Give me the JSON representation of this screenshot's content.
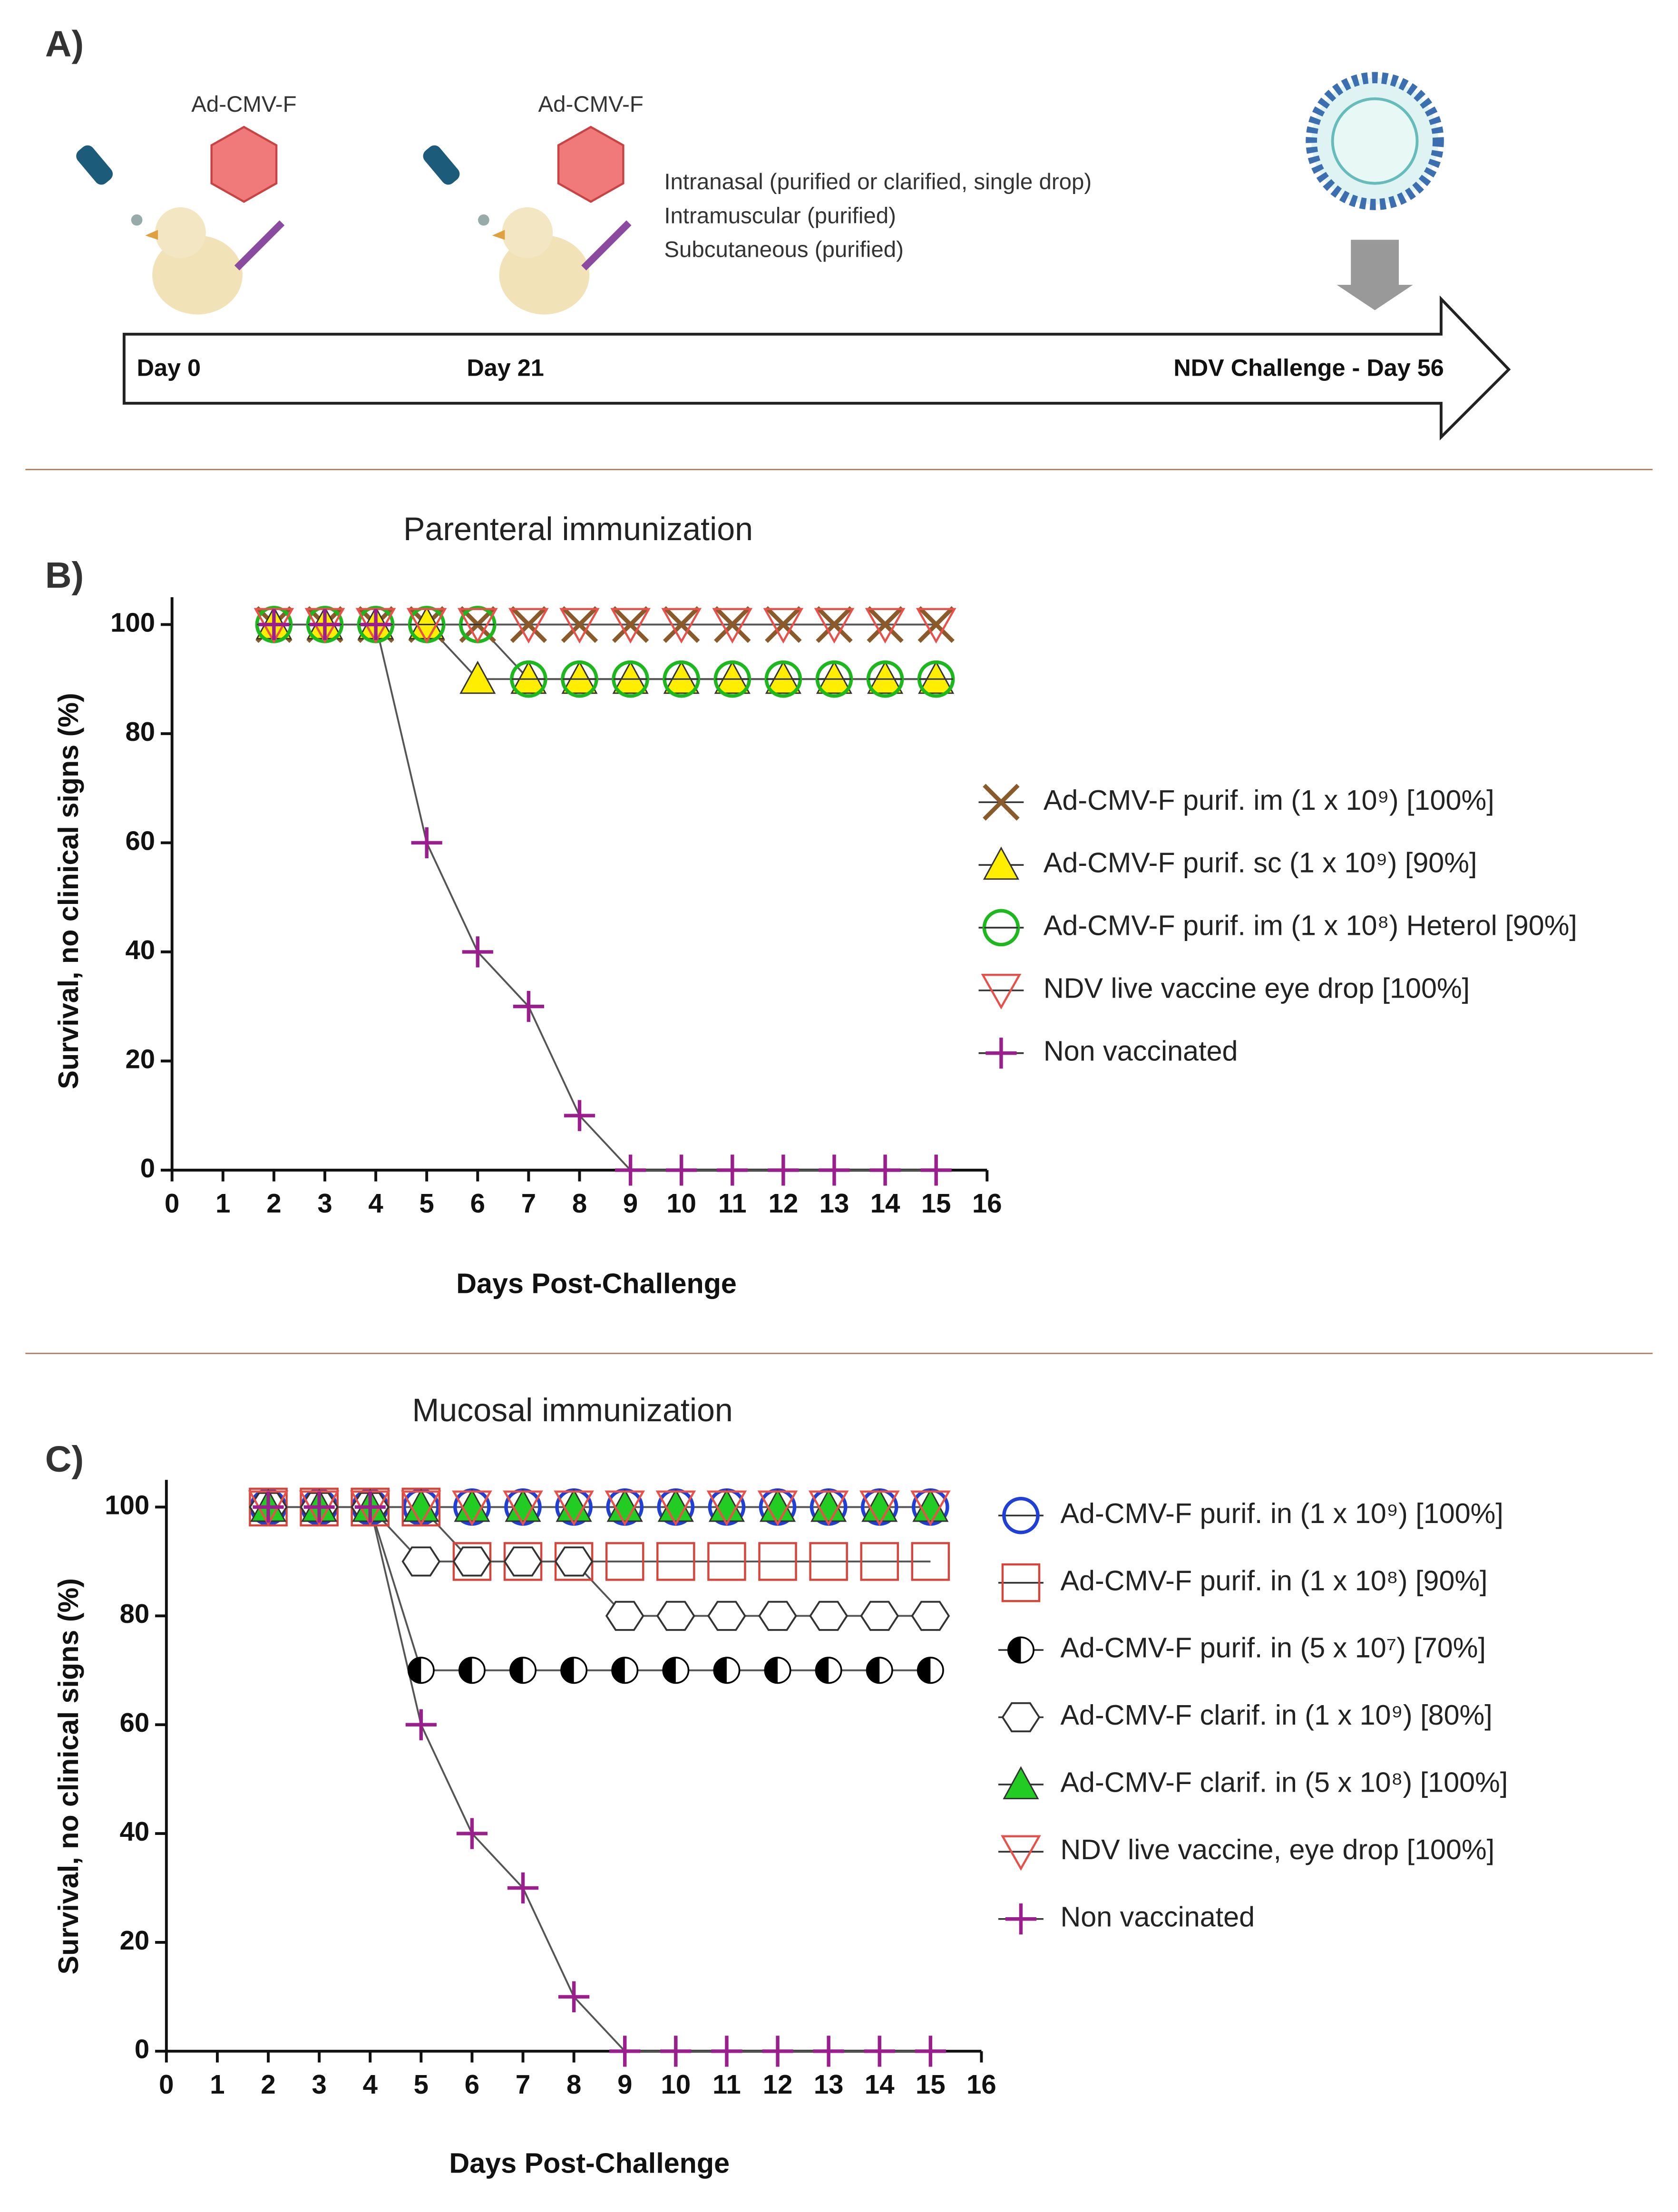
{
  "panel_a": {
    "label": "A)",
    "vector_1": "Ad-CMV-F",
    "vector_2": "Ad-CMV-F",
    "routes": [
      "Intranasal (purified or clarified, single drop)",
      "Intramuscular (purified)",
      "Subcutaneous (purified)"
    ],
    "day_0": "Day 0",
    "day_21": "Day 21",
    "challenge": "NDV Challenge - Day 56"
  },
  "chart_data": [
    {
      "type": "line",
      "panel_label": "B)",
      "title": "Parenteral immunization",
      "x_label": "Days Post-Challenge",
      "y_label": "Survival, no clinical signs (%)",
      "xlim": [
        0,
        16
      ],
      "xticks": [
        0,
        1,
        2,
        3,
        4,
        5,
        6,
        7,
        8,
        9,
        10,
        11,
        12,
        13,
        14,
        15,
        16
      ],
      "ylim": [
        0,
        105
      ],
      "yticks": [
        0,
        20,
        40,
        60,
        80,
        100
      ],
      "x": [
        2,
        3,
        4,
        5,
        6,
        7,
        8,
        9,
        10,
        11,
        12,
        13,
        14,
        15
      ],
      "series": [
        {
          "name": "Ad-CMV-F purif. im (1 x 10⁹) [100%]",
          "marker": "x",
          "color": "#8b5a2b",
          "values": [
            100,
            100,
            100,
            100,
            100,
            100,
            100,
            100,
            100,
            100,
            100,
            100,
            100,
            100
          ]
        },
        {
          "name": "Ad-CMV-F purif. sc (1 x 10⁹) [90%]",
          "marker": "triangle",
          "color": "#ffee00",
          "values": [
            100,
            100,
            100,
            100,
            90,
            90,
            90,
            90,
            90,
            90,
            90,
            90,
            90,
            90
          ]
        },
        {
          "name": "Ad-CMV-F purif. im (1 x 10⁸) Heterol [90%]",
          "marker": "circle-line",
          "color": "#1db81d",
          "values": [
            100,
            100,
            100,
            100,
            100,
            90,
            90,
            90,
            90,
            90,
            90,
            90,
            90,
            90
          ]
        },
        {
          "name": "NDV live vaccine eye drop   [100%]",
          "marker": "triangle-down",
          "color": "#e8504a",
          "values": [
            100,
            100,
            100,
            100,
            100,
            100,
            100,
            100,
            100,
            100,
            100,
            100,
            100,
            100
          ]
        },
        {
          "name": "Non vaccinated",
          "marker": "plus",
          "color": "#9b1e8e",
          "values": [
            100,
            100,
            100,
            60,
            40,
            30,
            10,
            0,
            0,
            0,
            0,
            0,
            0,
            0
          ]
        }
      ]
    },
    {
      "type": "line",
      "panel_label": "C)",
      "title": "Mucosal immunization",
      "x_label": "Days Post-Challenge",
      "y_label": "Survival, no clinical signs (%)",
      "xlim": [
        0,
        16
      ],
      "xticks": [
        0,
        1,
        2,
        3,
        4,
        5,
        6,
        7,
        8,
        9,
        10,
        11,
        12,
        13,
        14,
        15,
        16
      ],
      "ylim": [
        0,
        105
      ],
      "yticks": [
        0,
        20,
        40,
        60,
        80,
        100
      ],
      "x": [
        2,
        3,
        4,
        5,
        6,
        7,
        8,
        9,
        10,
        11,
        12,
        13,
        14,
        15
      ],
      "series": [
        {
          "name": "Ad-CMV-F purif. in (1 x 10⁹) [100%]",
          "marker": "circle",
          "color": "#1f3fd6",
          "values": [
            100,
            100,
            100,
            100,
            100,
            100,
            100,
            100,
            100,
            100,
            100,
            100,
            100,
            100
          ]
        },
        {
          "name": "Ad-CMV-F purif. in (1 x 10⁸) [90%]",
          "marker": "square",
          "color": "#d9443a",
          "values": [
            100,
            100,
            100,
            100,
            90,
            90,
            90,
            90,
            90,
            90,
            90,
            90,
            90,
            90
          ]
        },
        {
          "name": "Ad-CMV-F purif. in (5 x 10⁷)  [70%]",
          "marker": "half-circle",
          "color": "#000000",
          "values": [
            100,
            100,
            100,
            70,
            70,
            70,
            70,
            70,
            70,
            70,
            70,
            70,
            70,
            70
          ]
        },
        {
          "name": "Ad-CMV-F clarif. in (1 x 10⁹)  [80%]",
          "marker": "hexagon",
          "color": "#333333",
          "values": [
            100,
            100,
            100,
            90,
            90,
            90,
            90,
            80,
            80,
            80,
            80,
            80,
            80,
            80
          ]
        },
        {
          "name": "Ad-CMV-F clarif. in (5 x 10⁸) [100%]",
          "marker": "triangle",
          "color": "#22cc22",
          "values": [
            100,
            100,
            100,
            100,
            100,
            100,
            100,
            100,
            100,
            100,
            100,
            100,
            100,
            100
          ]
        },
        {
          "name": "NDV live vaccine, eye drop  [100%]",
          "marker": "triangle-down",
          "color": "#e8504a",
          "values": [
            100,
            100,
            100,
            100,
            100,
            100,
            100,
            100,
            100,
            100,
            100,
            100,
            100,
            100
          ]
        },
        {
          "name": "Non vaccinated",
          "marker": "plus",
          "color": "#9b1e8e",
          "values": [
            100,
            100,
            100,
            60,
            40,
            30,
            10,
            0,
            0,
            0,
            0,
            0,
            0,
            0
          ]
        }
      ]
    }
  ]
}
